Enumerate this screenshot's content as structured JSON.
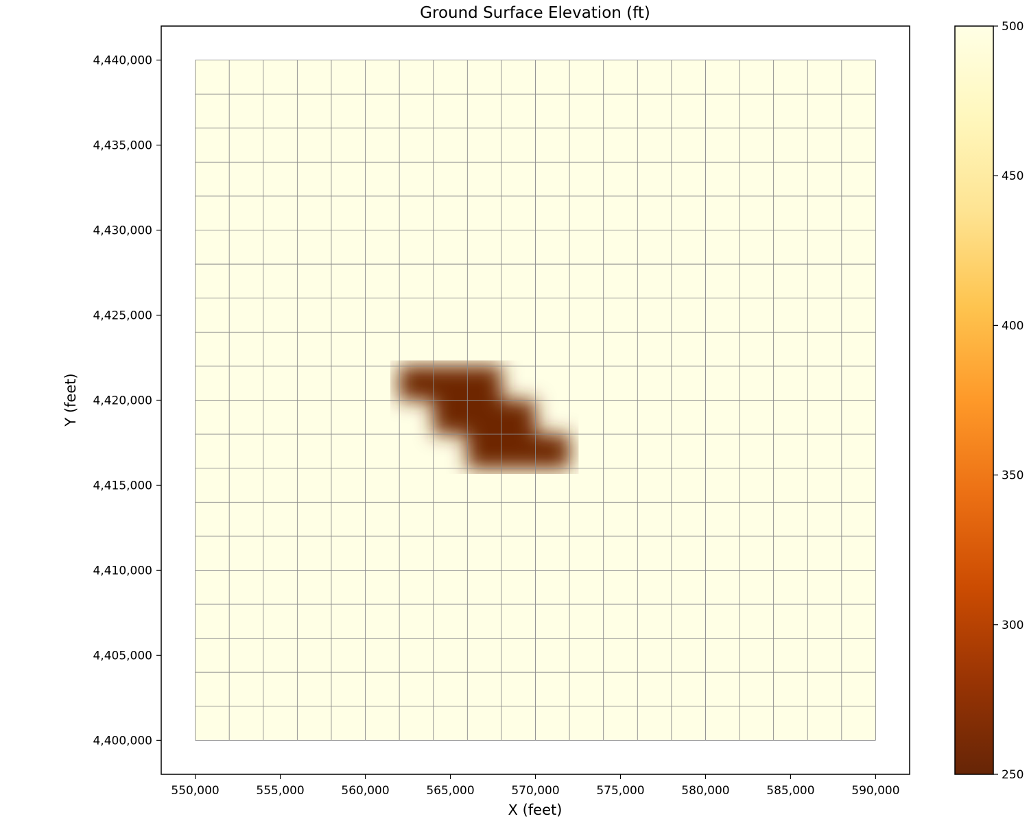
{
  "chart_data": {
    "type": "heatmap",
    "title": "Ground Surface Elevation (ft)",
    "xlabel": "X (feet)",
    "ylabel": "Y (feet)",
    "xlim": [
      548000,
      592000
    ],
    "ylim": [
      4398000,
      4442000
    ],
    "grid": {
      "x_start": 550000,
      "x_end": 590000,
      "y_start": 4400000,
      "y_end": 4440000,
      "cell_size": 2000,
      "cols": 20,
      "rows": 20
    },
    "x_ticks": [
      550000,
      555000,
      560000,
      565000,
      570000,
      575000,
      580000,
      585000,
      590000
    ],
    "x_tick_labels": [
      "550,000",
      "555,000",
      "560,000",
      "565,000",
      "570,000",
      "575,000",
      "580,000",
      "585,000",
      "590,000"
    ],
    "y_ticks": [
      4400000,
      4405000,
      4410000,
      4415000,
      4420000,
      4425000,
      4430000,
      4435000,
      4440000
    ],
    "y_tick_labels": [
      "4,400,000",
      "4,405,000",
      "4,410,000",
      "4,415,000",
      "4,420,000",
      "4,425,000",
      "4,430,000",
      "4,435,000",
      "4,440,000"
    ],
    "background_value": 500,
    "low_cells": [
      {
        "col": 6,
        "row": 9,
        "value": 255
      },
      {
        "col": 7,
        "row": 9,
        "value": 255
      },
      {
        "col": 8,
        "row": 9,
        "value": 255
      },
      {
        "col": 7,
        "row": 10,
        "value": 255
      },
      {
        "col": 8,
        "row": 10,
        "value": 255
      },
      {
        "col": 9,
        "row": 10,
        "value": 255
      },
      {
        "col": 8,
        "row": 11,
        "value": 255
      },
      {
        "col": 9,
        "row": 11,
        "value": 255
      },
      {
        "col": 10,
        "row": 11,
        "value": 255
      }
    ],
    "colorbar": {
      "min": 250,
      "max": 500,
      "ticks": [
        250,
        300,
        350,
        400,
        450,
        500
      ],
      "tick_labels": [
        "250",
        "300",
        "350",
        "400",
        "450",
        "500"
      ],
      "colormap": "YlOrBr_r",
      "stops": [
        "#662506",
        "#993404",
        "#cc4c02",
        "#ec7014",
        "#fe9929",
        "#fec44f",
        "#fee391",
        "#fff7bc",
        "#ffffe5"
      ]
    }
  }
}
